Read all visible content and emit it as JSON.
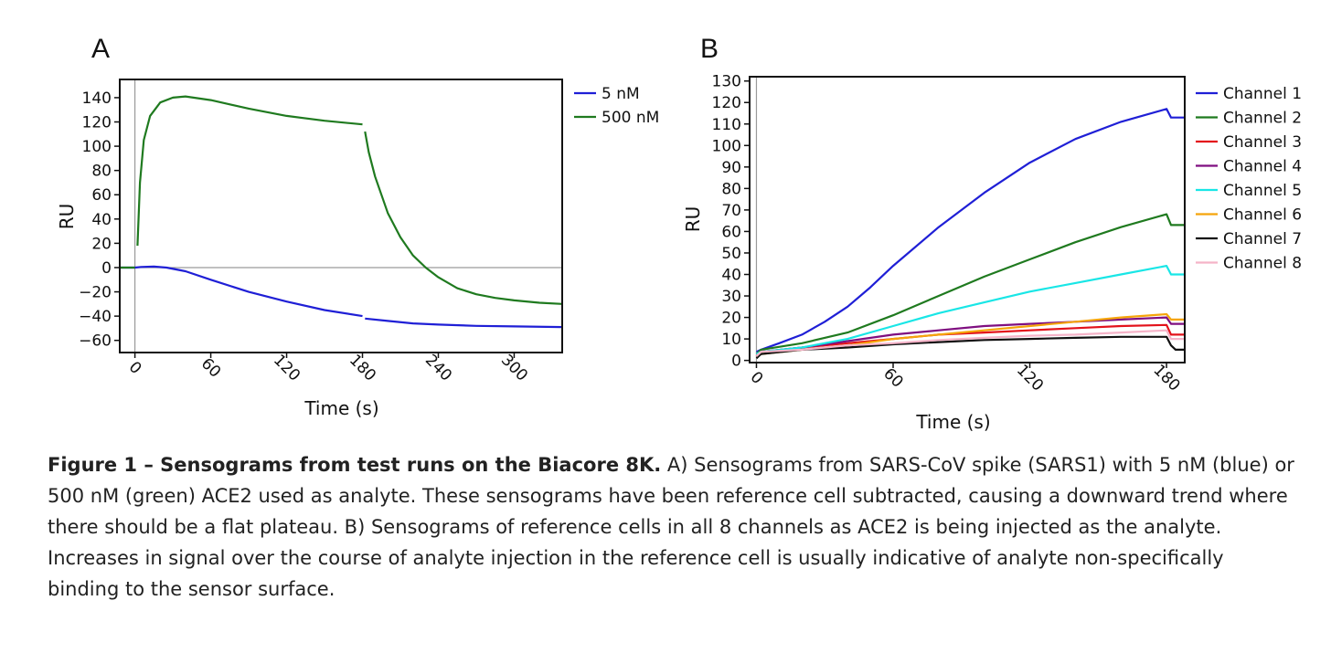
{
  "caption": {
    "bold": "Figure 1 – Sensograms from test runs on the Biacore 8K.",
    "text": " A) Sensograms from SARS-CoV spike (SARS1) with 5 nM (blue) or 500 nM (green) ACE2 used as analyte. These sensograms have been reference cell subtracted, causing a downward trend where there should be a flat plateau. B) Sensograms of reference cells in all 8 channels as ACE2 is being injected as the analyte. Increases in signal over the course of analyte injection in the reference cell is usually indicative of analyte non-specifically binding to the sensor surface."
  },
  "chart_data": [
    {
      "panel": "A",
      "type": "line",
      "xlabel": "Time (s)",
      "ylabel": "RU",
      "xlim": [
        -12,
        338
      ],
      "ylim": [
        -70,
        155
      ],
      "xticks": [
        0,
        60,
        120,
        180,
        240,
        300
      ],
      "yticks": [
        140,
        120,
        100,
        80,
        60,
        40,
        20,
        0,
        -20,
        -40,
        -60
      ],
      "ytick_labels": [
        "140",
        "120",
        "100",
        "80",
        "60",
        "40",
        "20",
        "0",
        "−20",
        "−40",
        "−60"
      ],
      "legend_position": "outside-right",
      "series": [
        {
          "name": "5 nM",
          "color": "#1f1fd6",
          "segments": [
            [
              [
                -12,
                0
              ],
              [
                0,
                0
              ],
              [
                5,
                0.5
              ],
              [
                15,
                0.8
              ],
              [
                25,
                0
              ],
              [
                40,
                -3
              ],
              [
                60,
                -10
              ],
              [
                90,
                -20
              ],
              [
                120,
                -28
              ],
              [
                150,
                -35
              ],
              [
                180,
                -40
              ]
            ],
            [
              [
                182,
                -42
              ],
              [
                200,
                -44
              ],
              [
                220,
                -46
              ],
              [
                240,
                -47
              ],
              [
                270,
                -48
              ],
              [
                300,
                -48.5
              ],
              [
                338,
                -49
              ]
            ]
          ]
        },
        {
          "name": "500 nM",
          "color": "#1f7a1f",
          "segments": [
            [
              [
                -12,
                0
              ],
              [
                0,
                0
              ]
            ],
            [
              [
                2,
                18
              ],
              [
                4,
                70
              ],
              [
                7,
                105
              ],
              [
                12,
                125
              ],
              [
                20,
                136
              ],
              [
                30,
                140
              ],
              [
                40,
                141
              ],
              [
                60,
                138
              ],
              [
                90,
                131
              ],
              [
                120,
                125
              ],
              [
                150,
                121
              ],
              [
                180,
                118
              ]
            ],
            [
              [
                182,
                112
              ],
              [
                185,
                95
              ],
              [
                190,
                75
              ],
              [
                200,
                45
              ],
              [
                210,
                25
              ],
              [
                220,
                10
              ],
              [
                230,
                0
              ],
              [
                240,
                -8
              ],
              [
                255,
                -17
              ],
              [
                270,
                -22
              ],
              [
                285,
                -25
              ],
              [
                300,
                -27
              ],
              [
                320,
                -29
              ],
              [
                338,
                -30
              ]
            ]
          ]
        }
      ]
    },
    {
      "panel": "B",
      "type": "line",
      "xlabel": "Time (s)",
      "ylabel": "RU",
      "xlim": [
        -3,
        188
      ],
      "ylim": [
        -1,
        132
      ],
      "xticks": [
        0,
        60,
        120,
        180
      ],
      "yticks": [
        0,
        10,
        20,
        30,
        40,
        50,
        60,
        70,
        80,
        90,
        100,
        110,
        120,
        130
      ],
      "legend_position": "outside-right",
      "series": [
        {
          "name": "Channel 1",
          "color": "#1f1fd6",
          "points": [
            [
              0,
              4
            ],
            [
              2,
              5
            ],
            [
              10,
              8
            ],
            [
              20,
              12
            ],
            [
              30,
              18
            ],
            [
              40,
              25
            ],
            [
              50,
              34
            ],
            [
              60,
              44
            ],
            [
              80,
              62
            ],
            [
              100,
              78
            ],
            [
              120,
              92
            ],
            [
              140,
              103
            ],
            [
              160,
              111
            ],
            [
              180,
              117
            ],
            [
              182,
              113
            ],
            [
              188,
              113
            ]
          ]
        },
        {
          "name": "Channel 2",
          "color": "#1f7a1f",
          "points": [
            [
              0,
              3
            ],
            [
              2,
              5
            ],
            [
              20,
              8
            ],
            [
              40,
              13
            ],
            [
              60,
              21
            ],
            [
              80,
              30
            ],
            [
              100,
              39
            ],
            [
              120,
              47
            ],
            [
              140,
              55
            ],
            [
              160,
              62
            ],
            [
              180,
              68
            ],
            [
              182,
              63
            ],
            [
              188,
              63
            ]
          ]
        },
        {
          "name": "Channel 3",
          "color": "#e3121b",
          "points": [
            [
              0,
              2
            ],
            [
              2,
              4
            ],
            [
              20,
              6
            ],
            [
              40,
              8
            ],
            [
              60,
              10
            ],
            [
              80,
              12
            ],
            [
              100,
              13
            ],
            [
              120,
              14
            ],
            [
              140,
              15
            ],
            [
              160,
              16
            ],
            [
              180,
              16.5
            ],
            [
              182,
              12
            ],
            [
              188,
              12
            ]
          ]
        },
        {
          "name": "Channel 4",
          "color": "#7f0f80",
          "points": [
            [
              0,
              2
            ],
            [
              2,
              4
            ],
            [
              20,
              6
            ],
            [
              40,
              9
            ],
            [
              60,
              12
            ],
            [
              80,
              14
            ],
            [
              100,
              16
            ],
            [
              120,
              17
            ],
            [
              140,
              18
            ],
            [
              160,
              19
            ],
            [
              180,
              20
            ],
            [
              182,
              17
            ],
            [
              188,
              17
            ]
          ]
        },
        {
          "name": "Channel 5",
          "color": "#19e6e6",
          "points": [
            [
              0,
              3
            ],
            [
              2,
              4
            ],
            [
              20,
              6
            ],
            [
              40,
              10
            ],
            [
              60,
              16
            ],
            [
              80,
              22
            ],
            [
              100,
              27
            ],
            [
              120,
              32
            ],
            [
              140,
              36
            ],
            [
              160,
              40
            ],
            [
              180,
              44
            ],
            [
              182,
              40
            ],
            [
              188,
              40
            ]
          ]
        },
        {
          "name": "Channel 6",
          "color": "#f5a50b",
          "points": [
            [
              0,
              2
            ],
            [
              2,
              3
            ],
            [
              20,
              5
            ],
            [
              40,
              7
            ],
            [
              60,
              10
            ],
            [
              80,
              12
            ],
            [
              100,
              14
            ],
            [
              120,
              16
            ],
            [
              140,
              18
            ],
            [
              160,
              20
            ],
            [
              180,
              21.5
            ],
            [
              182,
              19
            ],
            [
              188,
              19
            ]
          ]
        },
        {
          "name": "Channel 7",
          "color": "#111111",
          "points": [
            [
              0,
              1
            ],
            [
              2,
              3
            ],
            [
              20,
              5
            ],
            [
              40,
              6
            ],
            [
              60,
              7.5
            ],
            [
              80,
              8.5
            ],
            [
              100,
              9.5
            ],
            [
              120,
              10
            ],
            [
              140,
              10.5
            ],
            [
              160,
              11
            ],
            [
              180,
              11
            ],
            [
              182,
              7
            ],
            [
              184,
              5
            ],
            [
              188,
              5
            ]
          ]
        },
        {
          "name": "Channel 8",
          "color": "#f5b3c8",
          "points": [
            [
              0,
              2
            ],
            [
              2,
              4
            ],
            [
              20,
              5
            ],
            [
              40,
              7
            ],
            [
              60,
              8
            ],
            [
              80,
              9.5
            ],
            [
              100,
              10.5
            ],
            [
              120,
              11.5
            ],
            [
              140,
              12
            ],
            [
              160,
              13
            ],
            [
              180,
              14
            ],
            [
              182,
              10
            ],
            [
              188,
              10
            ]
          ]
        }
      ]
    }
  ]
}
